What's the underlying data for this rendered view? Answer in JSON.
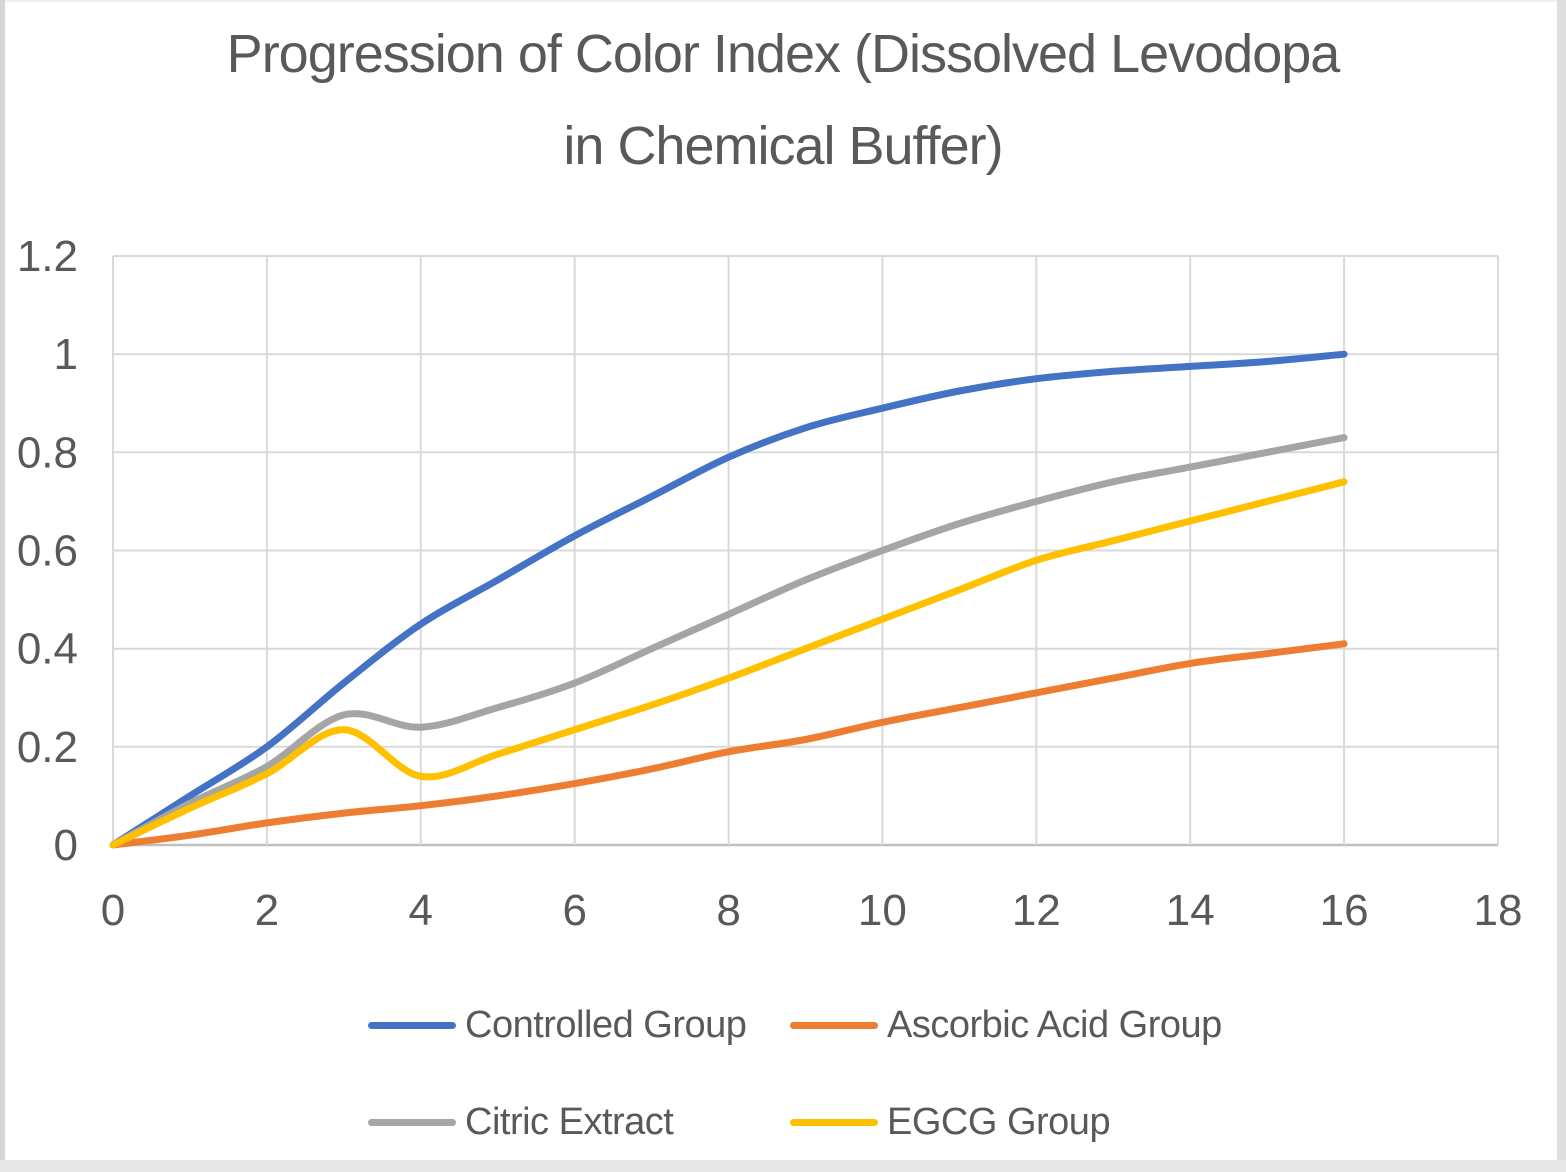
{
  "title": {
    "lines": [
      "Progression of Color Index (Dissolved Levodopa",
      "in Chemical Buffer)"
    ],
    "color": "#595959"
  },
  "chart_data": {
    "type": "line",
    "smooth": true,
    "x": [
      0,
      1,
      2,
      3,
      4,
      5,
      6,
      7,
      8,
      9,
      10,
      11,
      12,
      13,
      14,
      15,
      16
    ],
    "series": [
      {
        "name": "Controlled Group",
        "color": "#4472C4",
        "values": [
          0,
          0.1,
          0.2,
          0.33,
          0.45,
          0.54,
          0.63,
          0.71,
          0.79,
          0.85,
          0.89,
          0.925,
          0.95,
          0.965,
          0.975,
          0.985,
          1.0
        ]
      },
      {
        "name": "Ascorbic Acid Group",
        "color": "#ED7D31",
        "values": [
          0,
          0.02,
          0.045,
          0.065,
          0.08,
          0.1,
          0.125,
          0.155,
          0.19,
          0.215,
          0.25,
          0.28,
          0.31,
          0.34,
          0.37,
          0.39,
          0.41
        ]
      },
      {
        "name": "Citric Extract",
        "color": "#A5A5A5",
        "values": [
          0,
          0.085,
          0.16,
          0.265,
          0.24,
          0.28,
          0.33,
          0.4,
          0.47,
          0.54,
          0.6,
          0.655,
          0.7,
          0.74,
          0.77,
          0.8,
          0.83
        ]
      },
      {
        "name": "EGCG Group",
        "color": "#FFC000",
        "values": [
          0,
          0.075,
          0.145,
          0.235,
          0.14,
          0.185,
          0.235,
          0.285,
          0.34,
          0.4,
          0.46,
          0.52,
          0.58,
          0.62,
          0.66,
          0.7,
          0.74
        ]
      }
    ],
    "xlim": [
      0,
      18
    ],
    "ylim": [
      0,
      1.2
    ],
    "x_ticks": [
      0,
      2,
      4,
      6,
      8,
      10,
      12,
      14,
      16,
      18
    ],
    "x_tick_labels": [
      "0",
      "2",
      "4",
      "6",
      "8",
      "10",
      "12",
      "14",
      "16",
      "18"
    ],
    "y_ticks": [
      0,
      0.2,
      0.4,
      0.6,
      0.8,
      1,
      1.2
    ],
    "y_tick_labels": [
      "0",
      "0.2",
      "0.4",
      "0.6",
      "0.8",
      "1",
      "1.2"
    ],
    "grid": true,
    "gridline_color": "#d9d9d9",
    "axis_line_color": "#bfbfbf",
    "tick_label_color": "#595959",
    "line_width": 7,
    "legend_position": "bottom"
  },
  "legend": {
    "rows": [
      [
        {
          "label": "Controlled Group",
          "color": "#4472C4"
        },
        {
          "label": "Ascorbic Acid Group",
          "color": "#ED7D31"
        }
      ],
      [
        {
          "label": "Citric Extract",
          "color": "#A5A5A5"
        },
        {
          "label": "EGCG Group",
          "color": "#FFC000"
        }
      ]
    ]
  }
}
